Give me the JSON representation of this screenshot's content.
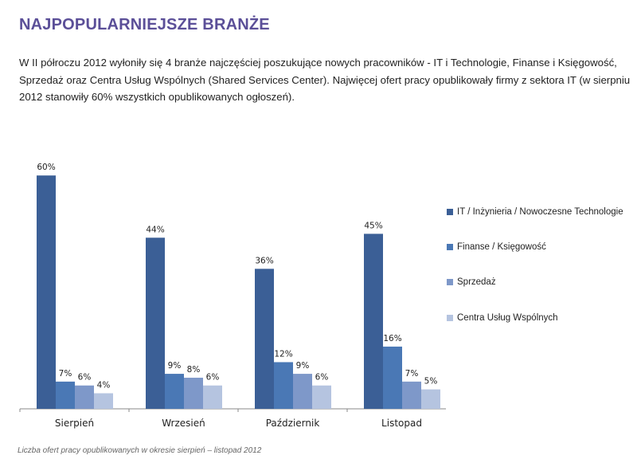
{
  "title": "NAJPOPULARNIEJSZE BRANŻE",
  "intro": "W  II półroczu 2012 wyłoniły się 4 branże najczęściej poszukujące nowych pracowników - IT i Technologie, Finanse i Księgowość, Sprzedaż oraz Centra Usług Wspólnych (Shared Services Center). Najwięcej ofert pracy opublikowały firmy z sektora IT (w sierpniu 2012 stanowiły 60% wszystkich opublikowanych ogłoszeń).",
  "caption": "Liczba ofert pracy opublikowanych w okresie sierpień – listopad 2012",
  "chart_data": {
    "type": "bar",
    "categories": [
      "Sierpień",
      "Wrzesień",
      "Październik",
      "Listopad"
    ],
    "series": [
      {
        "name": "IT / Inżynieria / Nowoczesne Technologie",
        "values": [
          60,
          44,
          36,
          45
        ],
        "color": "#3b5f96"
      },
      {
        "name": "Finanse / Księgowość",
        "values": [
          7,
          9,
          12,
          16
        ],
        "color": "#4a78b5"
      },
      {
        "name": "Sprzedaż",
        "values": [
          6,
          8,
          9,
          7
        ],
        "color": "#7e98c9"
      },
      {
        "name": "Centra Usług Wspólnych",
        "values": [
          4,
          6,
          6,
          5
        ],
        "color": "#b5c4e0"
      }
    ],
    "ylim": [
      0,
      60
    ],
    "grid": false,
    "legend": "right",
    "value_suffix": "%"
  }
}
